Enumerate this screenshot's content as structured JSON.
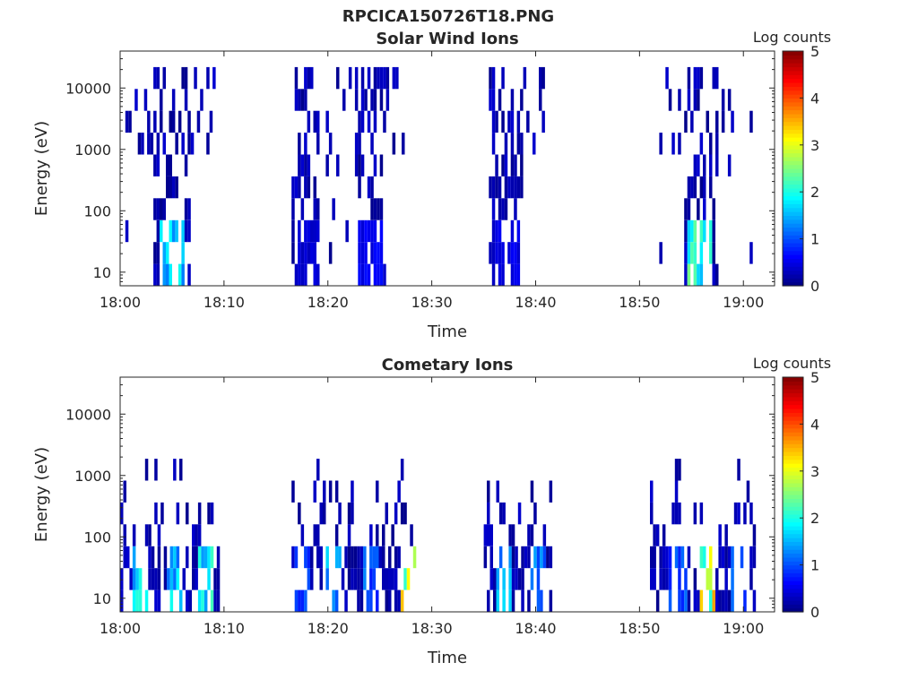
{
  "figure_title": "RPCICA150726T18.PNG",
  "colorscale": [
    "#00007f",
    "#0000ff",
    "#007fff",
    "#00ffff",
    "#7fff7f",
    "#ffff00",
    "#ff7f00",
    "#ff0000",
    "#7f0000"
  ],
  "chart_data": [
    {
      "type": "heatmap",
      "title": "Solar Wind Ions",
      "xlabel": "Time",
      "ylabel": "Energy (eV)",
      "x_ticks": [
        "18:00",
        "18:10",
        "18:20",
        "18:30",
        "18:40",
        "18:50",
        "19:00"
      ],
      "y_ticks": [
        "10",
        "100",
        "1000",
        "10000"
      ],
      "y_scale": "log",
      "x_range_minutes": [
        0,
        63
      ],
      "y_range_eV": [
        6,
        40000
      ],
      "colorbar": {
        "label": "Log counts",
        "ticks": [
          "0",
          "1",
          "2",
          "3",
          "4",
          "5"
        ],
        "range": [
          0,
          5
        ]
      },
      "bursts": [
        {
          "t_start_min": 0.5,
          "t_end_min": 9.5,
          "core_start_min": 3.0,
          "core_end_min": 6.5,
          "e_max_eV": 14000,
          "e_min_eV": 6,
          "low_energy_peak_log_counts": 2.0
        },
        {
          "t_start_min": 16.5,
          "t_end_min": 20.5,
          "core_start_min": 16.5,
          "core_end_min": 19.0,
          "e_max_eV": 12000,
          "e_min_eV": 6,
          "low_energy_peak_log_counts": 0.5
        },
        {
          "t_start_min": 20.5,
          "t_end_min": 28.0,
          "core_start_min": 22.5,
          "core_end_min": 25.5,
          "e_max_eV": 15000,
          "e_min_eV": 6,
          "low_energy_peak_log_counts": 0.7
        },
        {
          "t_start_min": 35.5,
          "t_end_min": 41.0,
          "core_start_min": 35.5,
          "core_end_min": 38.5,
          "e_max_eV": 12000,
          "e_min_eV": 6,
          "low_energy_peak_log_counts": 0.6
        },
        {
          "t_start_min": 51.0,
          "t_end_min": 61.0,
          "core_start_min": 54.0,
          "core_end_min": 57.5,
          "e_max_eV": 14000,
          "e_min_eV": 6,
          "low_energy_peak_log_counts": 2.5
        }
      ]
    },
    {
      "type": "heatmap",
      "title": "Cometary Ions",
      "xlabel": "Time",
      "ylabel": "Energy (eV)",
      "x_ticks": [
        "18:00",
        "18:10",
        "18:20",
        "18:30",
        "18:40",
        "18:50",
        "19:00"
      ],
      "y_ticks": [
        "10",
        "100",
        "1000",
        "10000"
      ],
      "y_scale": "log",
      "x_range_minutes": [
        0,
        63
      ],
      "y_range_eV": [
        6,
        40000
      ],
      "colorbar": {
        "label": "Log counts",
        "ticks": [
          "0",
          "1",
          "2",
          "3",
          "4",
          "5"
        ],
        "range": [
          0,
          5
        ]
      },
      "bursts": [
        {
          "t_start_min": 0.0,
          "t_end_min": 9.5,
          "e_max_eV": 900,
          "e_min_eV": 6,
          "hotspots": [
            [
              1.8,
              2.3
            ],
            [
              5.0,
              2.0
            ],
            [
              8.2,
              2.2
            ]
          ]
        },
        {
          "t_start_min": 16.5,
          "t_end_min": 28.5,
          "e_max_eV": 1100,
          "e_min_eV": 6,
          "hotspots": [
            [
              17.5,
              1.2
            ],
            [
              20.5,
              1.8
            ],
            [
              24.0,
              1.3
            ],
            [
              27.6,
              3.5
            ]
          ]
        },
        {
          "t_start_min": 35.0,
          "t_end_min": 41.5,
          "e_max_eV": 700,
          "e_min_eV": 6,
          "hotspots": [
            [
              36.8,
              1.8
            ],
            [
              40.0,
              1.5
            ]
          ]
        },
        {
          "t_start_min": 51.0,
          "t_end_min": 61.0,
          "e_max_eV": 1300,
          "e_min_eV": 6,
          "hotspots": [
            [
              53.5,
              1.2
            ],
            [
              56.3,
              3.6
            ],
            [
              59.5,
              1.4
            ]
          ]
        }
      ]
    }
  ]
}
